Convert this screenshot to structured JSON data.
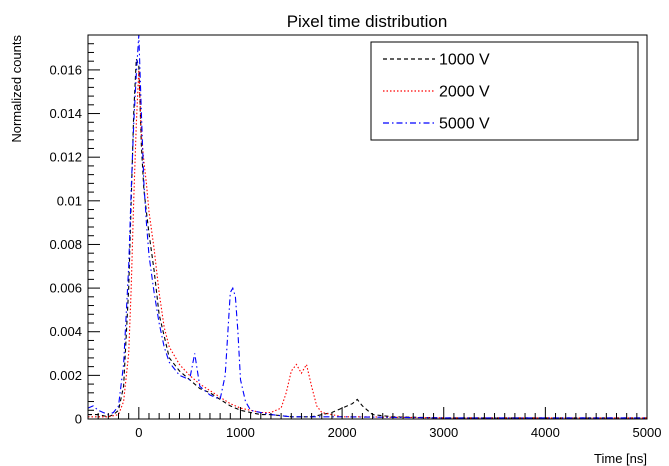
{
  "chart_data": {
    "type": "line",
    "title": "Pixel time distribution",
    "xlabel": "Time [ns]",
    "ylabel": "Normalized counts",
    "xlim": [
      -500,
      5000
    ],
    "ylim": [
      0,
      0.0176
    ],
    "x_ticks": [
      0,
      1000,
      2000,
      3000,
      4000,
      5000
    ],
    "x_tick_labels": [
      "0",
      "1000",
      "2000",
      "3000",
      "4000",
      "5000"
    ],
    "y_ticks": [
      0,
      0.002,
      0.004,
      0.006,
      0.008,
      0.01,
      0.012,
      0.014,
      0.016
    ],
    "y_tick_labels": [
      "0",
      "0.002",
      "0.004",
      "0.006",
      "0.008",
      "0.01",
      "0.012",
      "0.014",
      "0.016"
    ],
    "grid": false,
    "legend_position": "top-right",
    "series": [
      {
        "name": "1000 V",
        "color": "#000000",
        "dash": "dashed",
        "x": [
          -500,
          -400,
          -300,
          -250,
          -200,
          -150,
          -100,
          -75,
          -50,
          -25,
          0,
          25,
          50,
          75,
          100,
          150,
          200,
          250,
          300,
          400,
          500,
          600,
          700,
          800,
          900,
          1000,
          1100,
          1200,
          1300,
          1500,
          1700,
          1900,
          2000,
          2100,
          2150,
          2200,
          2250,
          2300,
          2500,
          3000,
          4000,
          5000
        ],
        "y": [
          0.0002,
          0.0002,
          0.0001,
          0.0002,
          0.0004,
          0.0015,
          0.006,
          0.01,
          0.014,
          0.0165,
          0.0162,
          0.0125,
          0.0105,
          0.0095,
          0.0085,
          0.0068,
          0.0048,
          0.0038,
          0.0028,
          0.0022,
          0.0018,
          0.0014,
          0.0012,
          0.0009,
          0.0006,
          0.0004,
          0.0003,
          0.0002,
          0.0002,
          0.0001,
          0.0001,
          0.0003,
          0.0005,
          0.0007,
          0.0009,
          0.0006,
          0.0004,
          0.0002,
          0.0001,
          5e-05,
          5e-05,
          5e-05
        ]
      },
      {
        "name": "2000 V",
        "color": "#ff0000",
        "dash": "dotted",
        "x": [
          -500,
          -400,
          -300,
          -200,
          -150,
          -100,
          -75,
          -50,
          -25,
          0,
          25,
          50,
          75,
          100,
          150,
          200,
          250,
          300,
          400,
          500,
          600,
          700,
          800,
          900,
          1000,
          1100,
          1200,
          1300,
          1400,
          1450,
          1500,
          1550,
          1600,
          1650,
          1700,
          1750,
          1800,
          1900,
          2000,
          2200,
          3000,
          4000,
          5000
        ],
        "y": [
          0.0001,
          0.0001,
          0.0001,
          0.0002,
          0.0008,
          0.003,
          0.006,
          0.01,
          0.0135,
          0.016,
          0.013,
          0.0118,
          0.0108,
          0.0095,
          0.0078,
          0.0058,
          0.0042,
          0.0033,
          0.0025,
          0.002,
          0.0016,
          0.0013,
          0.001,
          0.0007,
          0.0005,
          0.0004,
          0.0003,
          0.0003,
          0.0005,
          0.0012,
          0.0022,
          0.0025,
          0.0021,
          0.0025,
          0.0015,
          0.0006,
          0.0003,
          0.0002,
          0.0001,
          0.0001,
          5e-05,
          5e-05,
          5e-05
        ]
      },
      {
        "name": "5000 V",
        "color": "#0000ff",
        "dash": "dashdot",
        "x": [
          -500,
          -450,
          -400,
          -350,
          -300,
          -250,
          -200,
          -150,
          -100,
          -75,
          -50,
          -25,
          0,
          25,
          50,
          75,
          100,
          150,
          200,
          250,
          300,
          400,
          500,
          550,
          600,
          700,
          800,
          850,
          900,
          925,
          950,
          975,
          1000,
          1050,
          1100,
          1200,
          1300,
          1500,
          2000,
          3000,
          4000,
          5000
        ],
        "y": [
          0.0005,
          0.0006,
          0.0004,
          0.0003,
          0.0002,
          0.0003,
          0.0006,
          0.0025,
          0.007,
          0.0105,
          0.0135,
          0.0158,
          0.0176,
          0.014,
          0.0108,
          0.009,
          0.0075,
          0.0058,
          0.0044,
          0.0033,
          0.0026,
          0.002,
          0.0018,
          0.003,
          0.0015,
          0.0011,
          0.0009,
          0.002,
          0.0058,
          0.006,
          0.0056,
          0.004,
          0.0018,
          0.0008,
          0.0004,
          0.0003,
          0.0002,
          0.0001,
          0.0001,
          5e-05,
          5e-05,
          5e-05
        ]
      }
    ]
  }
}
